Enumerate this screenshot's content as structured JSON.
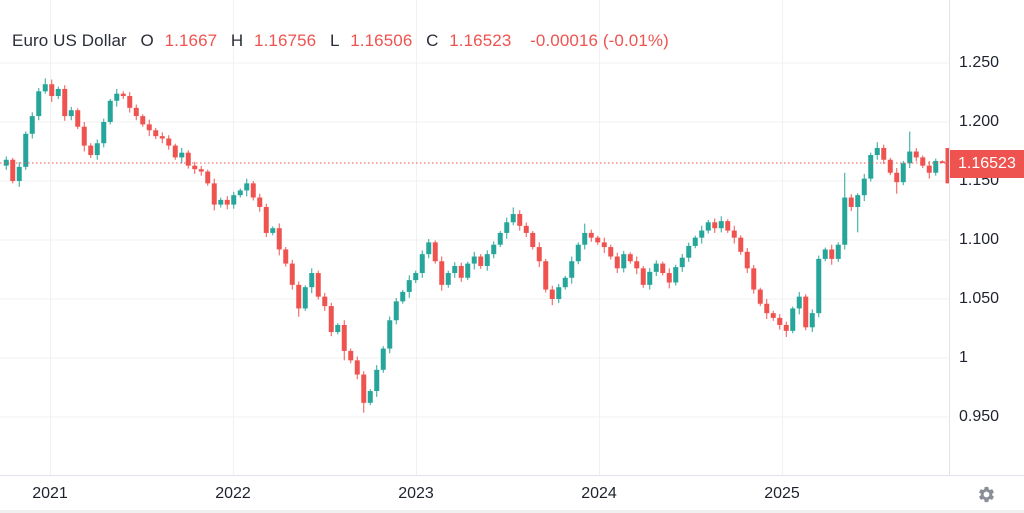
{
  "header": {
    "symbol": "Euro US Dollar",
    "o_label": "O",
    "o_value": "1.1667",
    "h_label": "H",
    "h_value": "1.16756",
    "l_label": "L",
    "l_value": "1.16506",
    "c_label": "C",
    "c_value": "1.16523",
    "change": "-0.00016 (-0.01%)"
  },
  "price_axis": {
    "tick_labels": [
      "1.250",
      "1.200",
      "1.150",
      "1.100",
      "1.050",
      "1",
      "0.950"
    ],
    "tick_values": [
      1.25,
      1.2,
      1.15,
      1.1,
      1.05,
      1.0,
      0.95
    ],
    "current_price_label": "1.16523",
    "current_price": 1.16523
  },
  "time_axis": {
    "tick_labels": [
      "2021",
      "2022",
      "2023",
      "2024",
      "2025"
    ]
  },
  "colors": {
    "up": "#26a69a",
    "down": "#ef5350",
    "accent_red": "#ef5350",
    "grid": "#f0f1f3",
    "axis_border": "#e0e3eb",
    "text": "#1e222d",
    "icon_gray": "#8a8e98"
  },
  "chart_data": {
    "type": "candlestick",
    "title": "Euro US Dollar",
    "x_ticks": [
      "2021",
      "2022",
      "2023",
      "2024",
      "2025"
    ],
    "ylim": [
      0.93,
      1.27
    ],
    "grid": true,
    "legend_position": "none",
    "current_price": 1.16523,
    "first_open": 1.163,
    "closes": [
      1.168,
      1.15,
      1.162,
      1.19,
      1.205,
      1.226,
      1.232,
      1.222,
      1.228,
      1.205,
      1.21,
      1.196,
      1.18,
      1.172,
      1.182,
      1.2,
      1.218,
      1.224,
      1.222,
      1.212,
      1.205,
      1.198,
      1.193,
      1.188,
      1.186,
      1.18,
      1.17,
      1.174,
      1.163,
      1.16,
      1.158,
      1.148,
      1.13,
      1.134,
      1.13,
      1.138,
      1.142,
      1.148,
      1.136,
      1.128,
      1.106,
      1.11,
      1.092,
      1.08,
      1.062,
      1.042,
      1.06,
      1.072,
      1.052,
      1.044,
      1.022,
      1.028,
      1.006,
      0.998,
      0.986,
      0.962,
      0.972,
      0.99,
      1.008,
      1.032,
      1.048,
      1.056,
      1.066,
      1.072,
      1.088,
      1.098,
      1.082,
      1.062,
      1.072,
      1.078,
      1.068,
      1.08,
      1.086,
      1.078,
      1.088,
      1.096,
      1.106,
      1.115,
      1.122,
      1.112,
      1.106,
      1.094,
      1.082,
      1.058,
      1.05,
      1.06,
      1.068,
      1.082,
      1.096,
      1.106,
      1.102,
      1.098,
      1.094,
      1.086,
      1.076,
      1.088,
      1.082,
      1.076,
      1.062,
      1.073,
      1.08,
      1.072,
      1.064,
      1.077,
      1.085,
      1.095,
      1.102,
      1.108,
      1.115,
      1.11,
      1.116,
      1.108,
      1.102,
      1.09,
      1.076,
      1.058,
      1.046,
      1.038,
      1.034,
      1.028,
      1.023,
      1.042,
      1.052,
      1.026,
      1.038,
      1.084,
      1.092,
      1.084,
      1.096,
      1.136,
      1.128,
      1.138,
      1.152,
      1.172,
      1.178,
      1.168,
      1.157,
      1.149,
      1.165,
      1.175,
      1.17,
      1.163,
      1.157,
      1.167,
      1.16523
    ],
    "wick_overrides": {
      "6": {
        "h": 1.237
      },
      "45": {
        "l": 1.035
      },
      "52": {
        "l": 0.998
      },
      "55": {
        "l": 0.9536
      },
      "78": {
        "h": 1.1276
      },
      "84": {
        "l": 1.0448
      },
      "89": {
        "h": 1.1139
      },
      "110": {
        "h": 1.1201
      },
      "120": {
        "l": 1.0178
      },
      "129": {
        "h": 1.157
      },
      "131": {
        "l": 1.1065
      },
      "134": {
        "h": 1.1829
      },
      "137": {
        "l": 1.1392
      },
      "139": {
        "h": 1.1919
      }
    },
    "last_candle": {
      "o": 1.1667,
      "h": 1.16756,
      "l": 1.16506,
      "c": 1.16523
    },
    "edge_bar": {
      "top_price": 1.178,
      "bottom_price": 1.148
    }
  }
}
